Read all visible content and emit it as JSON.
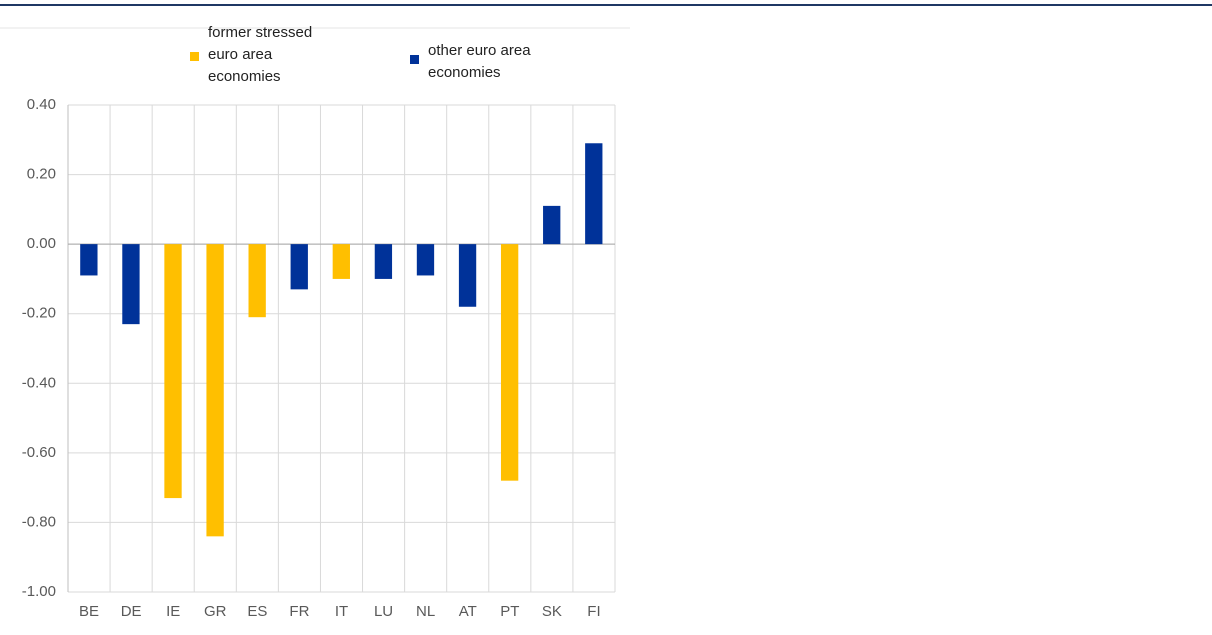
{
  "chart_data": {
    "type": "bar",
    "categories": [
      "BE",
      "DE",
      "IE",
      "GR",
      "ES",
      "FR",
      "IT",
      "LU",
      "NL",
      "AT",
      "PT",
      "SK",
      "FI"
    ],
    "series": [
      {
        "name": "former stressed euro area economies",
        "color": "#ffbf00",
        "values": [
          null,
          null,
          -0.73,
          -0.84,
          -0.21,
          null,
          -0.1,
          null,
          null,
          null,
          -0.68,
          null,
          null
        ]
      },
      {
        "name": "other euro area economies",
        "color": "#003299",
        "values": [
          -0.09,
          -0.23,
          null,
          null,
          null,
          -0.13,
          null,
          -0.1,
          -0.09,
          -0.18,
          null,
          0.11,
          0.29
        ]
      }
    ],
    "ylim": [
      -1.0,
      0.4
    ],
    "yticks": [
      {
        "value": -1.0,
        "label": "-1.00"
      },
      {
        "value": -0.8,
        "label": "-0.80"
      },
      {
        "value": -0.6,
        "label": "-0.60"
      },
      {
        "value": -0.4,
        "label": "-0.40"
      },
      {
        "value": -0.2,
        "label": "-0.20"
      },
      {
        "value": 0.0,
        "label": "0.00"
      },
      {
        "value": 0.2,
        "label": "0.20"
      },
      {
        "value": 0.4,
        "label": "0.40"
      }
    ],
    "grid": true
  }
}
